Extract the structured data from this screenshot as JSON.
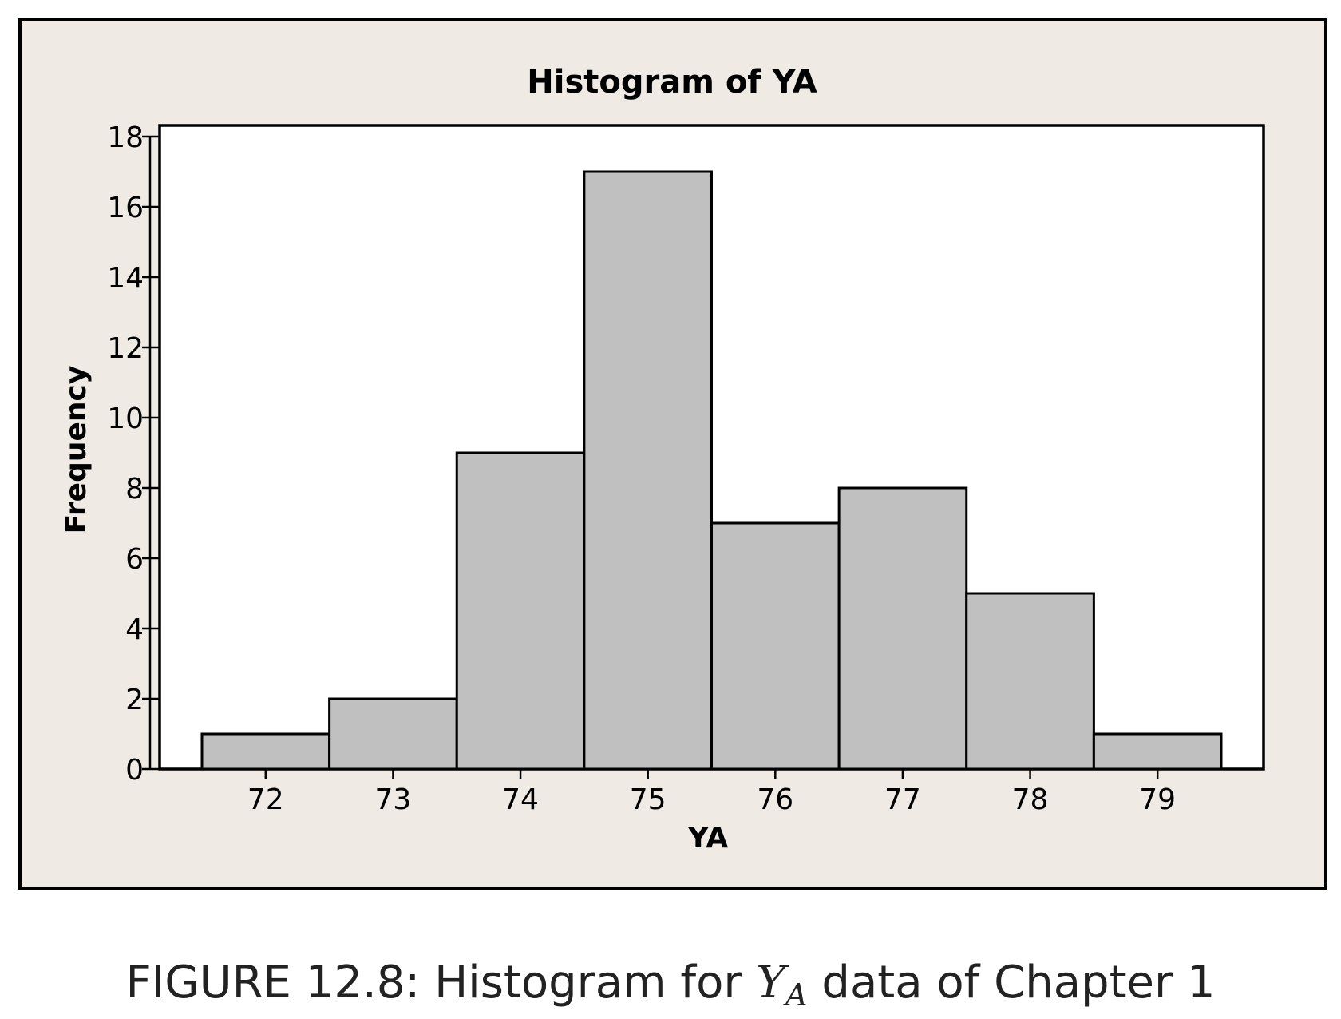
{
  "chart_data": {
    "type": "bar",
    "title": "Histogram of YA",
    "xlabel": "YA",
    "ylabel": "Frequency",
    "categories": [
      "72",
      "73",
      "74",
      "75",
      "76",
      "77",
      "78",
      "79"
    ],
    "x": [
      72,
      73,
      74,
      75,
      76,
      77,
      78,
      79
    ],
    "values": [
      1,
      2,
      9,
      17,
      7,
      8,
      5,
      1
    ],
    "xlim": [
      71.5,
      79.5
    ],
    "ylim": [
      0,
      18
    ],
    "yticks": [
      0,
      2,
      4,
      6,
      8,
      10,
      12,
      14,
      16,
      18
    ],
    "xticks": [
      72,
      73,
      74,
      75,
      76,
      77,
      78,
      79
    ],
    "grid": false,
    "colors": {
      "bar_fill": "#c0c0c0",
      "figure_background": "#efebe4",
      "plot_background": "#ffffff"
    }
  },
  "caption": {
    "prefix": "FIGURE 12.8: Histogram for",
    "variable": "Y",
    "subscript": "A",
    "suffix": "data of Chapter 1"
  }
}
